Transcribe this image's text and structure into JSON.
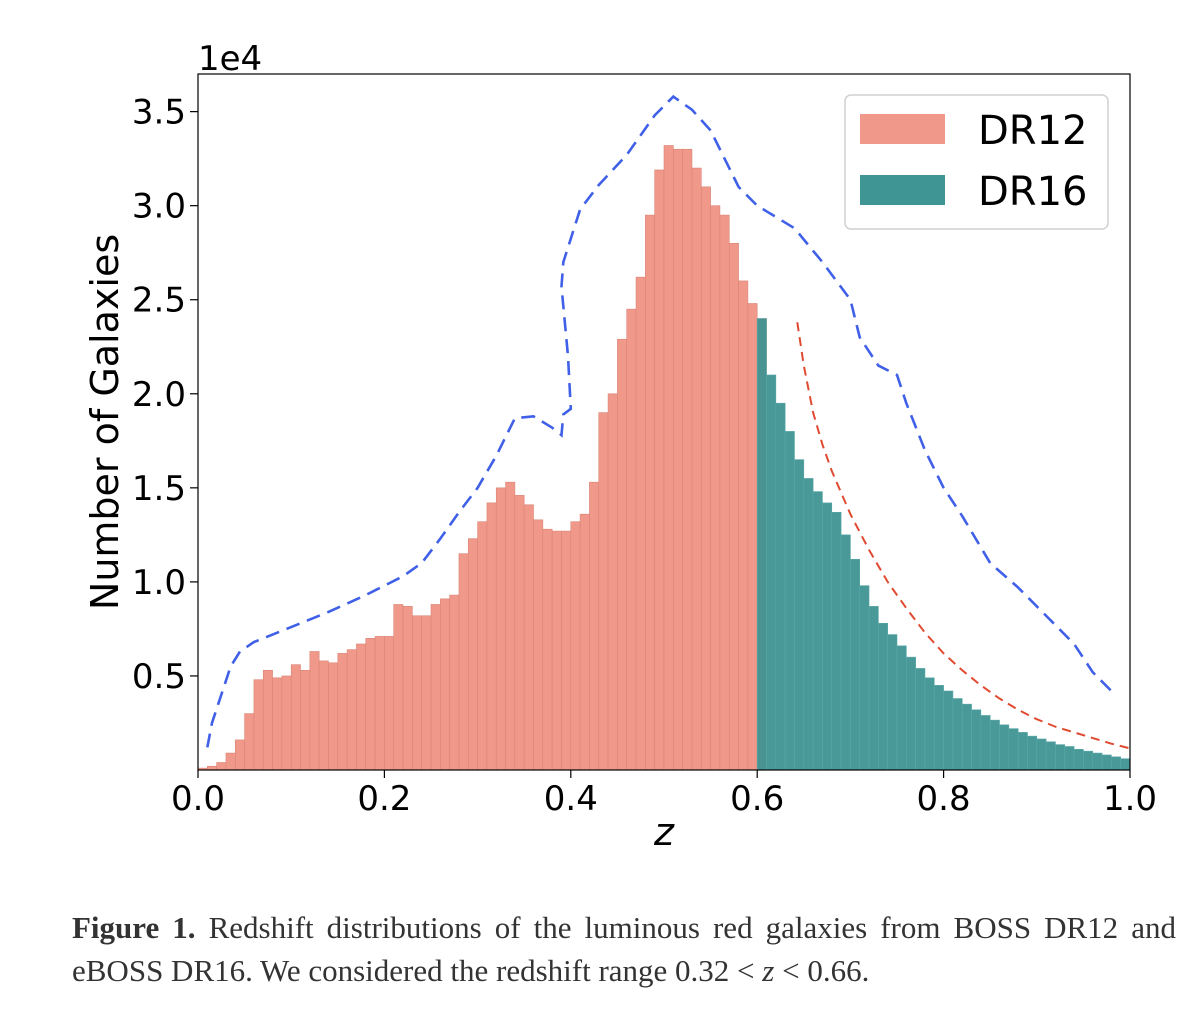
{
  "chart_data": {
    "type": "bar",
    "xlabel": "z",
    "ylabel": "Number of Galaxies",
    "offset_label": "1e4",
    "xlim": [
      0.0,
      1.0
    ],
    "ylim": [
      0,
      37000
    ],
    "x_ticks": [
      0.0,
      0.2,
      0.4,
      0.6,
      0.8,
      1.0
    ],
    "x_tick_labels": [
      "0.0",
      "0.2",
      "0.4",
      "0.6",
      "0.8",
      "1.0"
    ],
    "y_ticks": [
      5000,
      10000,
      15000,
      20000,
      25000,
      30000,
      35000
    ],
    "y_tick_labels": [
      "0.5",
      "1.0",
      "1.5",
      "2.0",
      "2.5",
      "3.0",
      "3.5"
    ],
    "legend": {
      "position": "top-right",
      "entries": [
        "DR12",
        "DR16"
      ]
    },
    "bin_width": 0.01,
    "series": [
      {
        "name": "DR12",
        "color": "#f0988a",
        "bin_start": 0.0,
        "values": [
          100,
          200,
          400,
          900,
          1600,
          3000,
          4800,
          5300,
          4900,
          5000,
          5600,
          5300,
          6300,
          5800,
          5700,
          6200,
          6400,
          6700,
          7000,
          7100,
          7100,
          8800,
          8700,
          8200,
          8200,
          8800,
          9100,
          9300,
          11500,
          12300,
          13200,
          14200,
          15000,
          15300,
          14600,
          14100,
          13300,
          12800,
          12700,
          12700,
          13200,
          13600,
          15300,
          19000,
          20000,
          22900,
          24500,
          26200,
          29500,
          31900,
          33200,
          33000,
          33000,
          32000,
          31000,
          30000,
          29500,
          28000,
          26000,
          24800,
          24000
        ]
      },
      {
        "name": "DR16",
        "color": "#3f9494",
        "bin_start": 0.6,
        "values": [
          24000,
          21000,
          19500,
          18000,
          16500,
          15500,
          14800,
          14200,
          13700,
          12500,
          11200,
          9800,
          8700,
          7800,
          7200,
          6600,
          6000,
          5400,
          4900,
          4500,
          4200,
          3800,
          3500,
          3200,
          2900,
          2650,
          2400,
          2200,
          2000,
          1800,
          1650,
          1500,
          1350,
          1250,
          1100,
          1000,
          900,
          800,
          700,
          600
        ]
      }
    ],
    "lines": [
      {
        "style": "dashed",
        "color": "#4060e8",
        "points": [
          [
            0.01,
            1200
          ],
          [
            0.015,
            2500
          ],
          [
            0.025,
            4000
          ],
          [
            0.035,
            5500
          ],
          [
            0.045,
            6300
          ],
          [
            0.06,
            6800
          ],
          [
            0.1,
            7600
          ],
          [
            0.14,
            8400
          ],
          [
            0.18,
            9300
          ],
          [
            0.22,
            10300
          ],
          [
            0.24,
            11000
          ],
          [
            0.26,
            12300
          ],
          [
            0.28,
            13700
          ],
          [
            0.3,
            15000
          ],
          [
            0.32,
            16700
          ],
          [
            0.34,
            18700
          ],
          [
            0.36,
            18800
          ],
          [
            0.38,
            18200
          ],
          [
            0.39,
            17800
          ],
          [
            0.392,
            18900
          ],
          [
            0.4,
            19200
          ],
          [
            0.397,
            22000
          ],
          [
            0.39,
            25700
          ],
          [
            0.392,
            27000
          ],
          [
            0.41,
            29800
          ],
          [
            0.43,
            31100
          ],
          [
            0.46,
            32700
          ],
          [
            0.49,
            34800
          ],
          [
            0.51,
            35800
          ],
          [
            0.53,
            35100
          ],
          [
            0.55,
            34000
          ],
          [
            0.56,
            33000
          ],
          [
            0.57,
            32000
          ],
          [
            0.58,
            31000
          ],
          [
            0.6,
            30000
          ],
          [
            0.61,
            29700
          ],
          [
            0.64,
            28800
          ],
          [
            0.67,
            27000
          ],
          [
            0.7,
            25000
          ],
          [
            0.71,
            23000
          ],
          [
            0.73,
            21500
          ],
          [
            0.75,
            21000
          ],
          [
            0.76,
            19500
          ],
          [
            0.78,
            17000
          ],
          [
            0.8,
            15000
          ],
          [
            0.82,
            13500
          ],
          [
            0.85,
            11000
          ],
          [
            0.88,
            9700
          ],
          [
            0.91,
            8200
          ],
          [
            0.94,
            6700
          ],
          [
            0.96,
            5200
          ],
          [
            0.98,
            4200
          ]
        ]
      },
      {
        "style": "dashed",
        "color": "#e04a30",
        "points": [
          [
            0.643,
            23800
          ],
          [
            0.65,
            21500
          ],
          [
            0.66,
            19000
          ],
          [
            0.67,
            17300
          ],
          [
            0.68,
            15900
          ],
          [
            0.7,
            13600
          ],
          [
            0.72,
            11700
          ],
          [
            0.74,
            10000
          ],
          [
            0.76,
            8600
          ],
          [
            0.78,
            7300
          ],
          [
            0.8,
            6200
          ],
          [
            0.82,
            5300
          ],
          [
            0.84,
            4500
          ],
          [
            0.86,
            3800
          ],
          [
            0.88,
            3200
          ],
          [
            0.9,
            2700
          ],
          [
            0.92,
            2300
          ],
          [
            0.94,
            2000
          ],
          [
            0.96,
            1700
          ],
          [
            0.98,
            1400
          ],
          [
            1.0,
            1150
          ]
        ]
      }
    ]
  },
  "caption": {
    "label": "Figure 1.",
    "text_1": " Redshift distributions of the luminous red galaxies from BOSS DR12 and eBOSS DR16. We considered the redshift range 0.32 < ",
    "var": "z",
    "text_2": " < 0.66."
  }
}
